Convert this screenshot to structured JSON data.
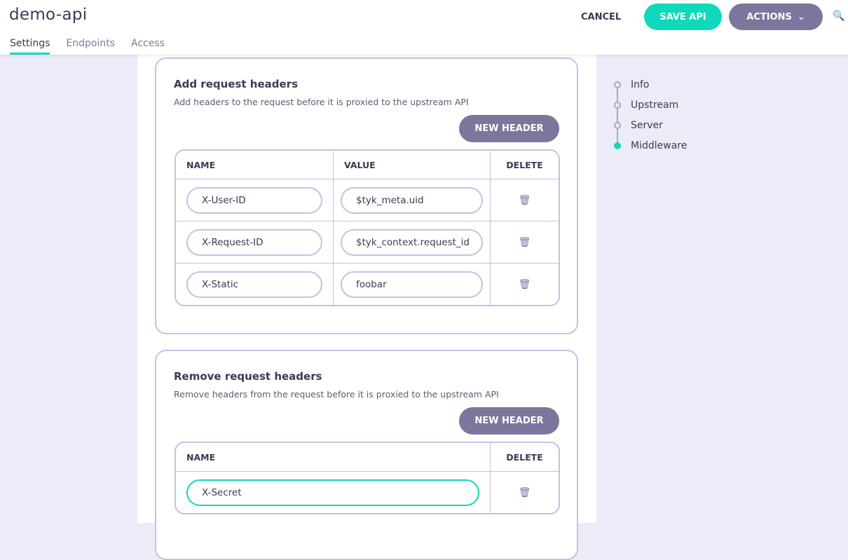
{
  "header": {
    "title": "demo-api",
    "tabs": [
      {
        "label": "Settings",
        "active": true
      },
      {
        "label": "Endpoints"
      },
      {
        "label": "Access"
      }
    ],
    "cancel_label": "CANCEL",
    "save_label": "SAVE API",
    "actions_label": "ACTIONS"
  },
  "colors": {
    "accent": "#0fd9bb",
    "secondary": "#7b779c"
  },
  "add_headers": {
    "title": "Add request headers",
    "description": "Add headers to the request before it is proxied to the upstream API",
    "new_label": "NEW HEADER",
    "columns": [
      "NAME",
      "VALUE",
      "DELETE"
    ],
    "rows": [
      {
        "name": "X-User-ID",
        "value": "$tyk_meta.uid"
      },
      {
        "name": "X-Request-ID",
        "value": "$tyk_context.request_id"
      },
      {
        "name": "X-Static",
        "value": "foobar"
      }
    ]
  },
  "remove_headers": {
    "title": "Remove request headers",
    "description": "Remove headers from the request before it is proxied to the upstream API",
    "new_label": "NEW HEADER",
    "columns": [
      "NAME",
      "DELETE"
    ],
    "rows": [
      {
        "name": "X-Secret"
      }
    ]
  },
  "steps": [
    {
      "label": "Info"
    },
    {
      "label": "Upstream"
    },
    {
      "label": "Server"
    },
    {
      "label": "Middleware",
      "active": true
    }
  ]
}
